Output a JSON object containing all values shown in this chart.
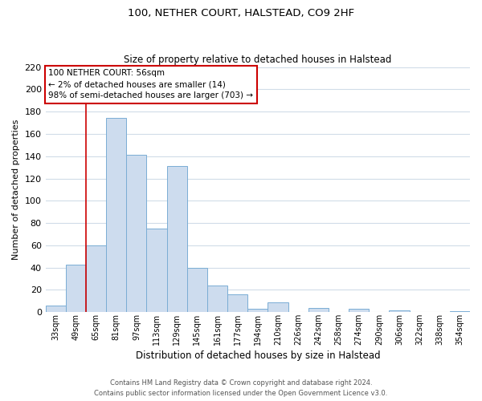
{
  "title": "100, NETHER COURT, HALSTEAD, CO9 2HF",
  "subtitle": "Size of property relative to detached houses in Halstead",
  "xlabel": "Distribution of detached houses by size in Halstead",
  "ylabel": "Number of detached properties",
  "bar_labels": [
    "33sqm",
    "49sqm",
    "65sqm",
    "81sqm",
    "97sqm",
    "113sqm",
    "129sqm",
    "145sqm",
    "161sqm",
    "177sqm",
    "194sqm",
    "210sqm",
    "226sqm",
    "242sqm",
    "258sqm",
    "274sqm",
    "290sqm",
    "306sqm",
    "322sqm",
    "338sqm",
    "354sqm"
  ],
  "bar_values": [
    6,
    43,
    60,
    174,
    141,
    75,
    131,
    40,
    24,
    16,
    3,
    9,
    0,
    4,
    0,
    3,
    0,
    2,
    0,
    0,
    1
  ],
  "bar_color": "#cddcee",
  "bar_edge_color": "#7aadd4",
  "vline_color": "#cc0000",
  "ylim": [
    0,
    220
  ],
  "yticks": [
    0,
    20,
    40,
    60,
    80,
    100,
    120,
    140,
    160,
    180,
    200,
    220
  ],
  "annotation_title": "100 NETHER COURT: 56sqm",
  "annotation_line1": "← 2% of detached houses are smaller (14)",
  "annotation_line2": "98% of semi-detached houses are larger (703) →",
  "annotation_box_color": "#ffffff",
  "annotation_box_edge": "#cc0000",
  "footer_line1": "Contains HM Land Registry data © Crown copyright and database right 2024.",
  "footer_line2": "Contains public sector information licensed under the Open Government Licence v3.0.",
  "background_color": "#ffffff",
  "grid_color": "#d0dce8"
}
